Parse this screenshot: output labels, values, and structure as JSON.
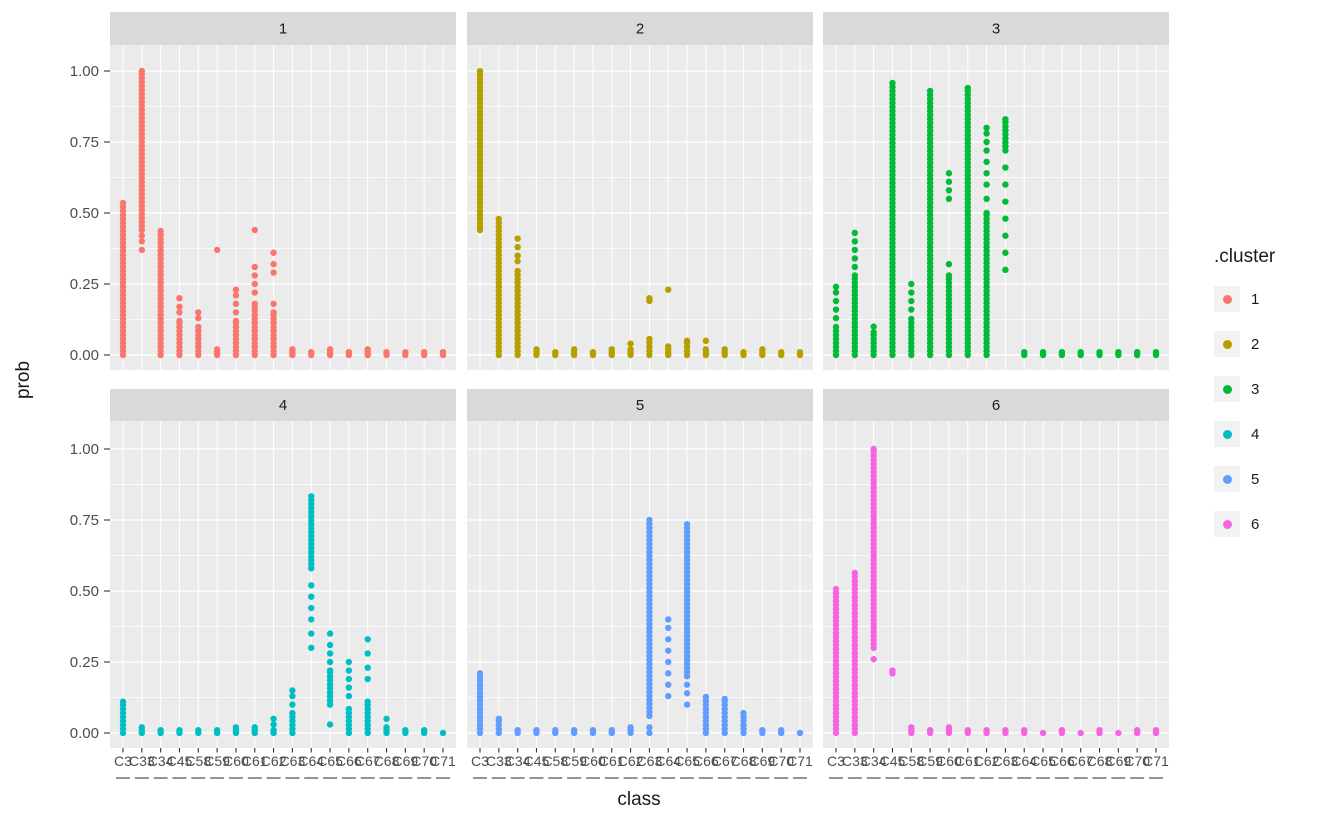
{
  "figure": {
    "xlabel": "class",
    "ylabel": "prob"
  },
  "chart_data": {
    "type": "scatter",
    "subtype": "faceted-strip-plot",
    "title": "",
    "xlabel": "class",
    "ylabel": "prob",
    "ylim": [
      0,
      1
    ],
    "grid": true,
    "y_ticks": [
      0,
      0.25,
      0.5,
      0.75,
      1.0
    ],
    "y_tick_labels": [
      "0.00",
      "0.25",
      "0.50",
      "0.75",
      "1.00"
    ],
    "x_categories": [
      "C3",
      "C33",
      "C34",
      "C45",
      "C58",
      "C59",
      "C60",
      "C61",
      "C62",
      "C63",
      "C64",
      "C65",
      "C66",
      "C67",
      "C68",
      "C69",
      "C70",
      "C71"
    ],
    "legend": {
      "title": ".cluster",
      "position": "right",
      "items": [
        {
          "label": "1",
          "color": "#F8766D"
        },
        {
          "label": "2",
          "color": "#B79F00"
        },
        {
          "label": "3",
          "color": "#00BA38"
        },
        {
          "label": "4",
          "color": "#00BFC4"
        },
        {
          "label": "5",
          "color": "#619CFF"
        },
        {
          "label": "6",
          "color": "#F564E2"
        }
      ]
    },
    "style": {
      "panel_bg": "#EBEBEB",
      "strip_bg": "#D9D9D9",
      "grid_color": "#FFFFFF",
      "tick_text": "#4D4D4D",
      "title_text": "#1A1A1A"
    },
    "facets": [
      {
        "label": "1",
        "color": "#F8766D",
        "columns": [
          {
            "d": [
              [
                0,
                0.54
              ]
            ]
          },
          {
            "d": [
              [
                0.44,
                1.0
              ]
            ],
            "p": [
              0.37,
              0.4,
              0.42
            ]
          },
          {
            "d": [
              [
                0,
                0.44
              ]
            ]
          },
          {
            "d": [
              [
                0,
                0.12
              ]
            ],
            "p": [
              0.15,
              0.17,
              0.2
            ]
          },
          {
            "d": [
              [
                0,
                0.1
              ]
            ],
            "p": [
              0.13,
              0.15
            ]
          },
          {
            "p": [
              0,
              0.01,
              0.02,
              0.37
            ]
          },
          {
            "d": [
              [
                0,
                0.12
              ]
            ],
            "p": [
              0.15,
              0.18,
              0.21,
              0.23
            ]
          },
          {
            "d": [
              [
                0,
                0.18
              ]
            ],
            "p": [
              0.22,
              0.25,
              0.28,
              0.31,
              0.44
            ]
          },
          {
            "d": [
              [
                0,
                0.15
              ]
            ],
            "p": [
              0.18,
              0.29,
              0.32,
              0.36
            ]
          },
          {
            "p": [
              0,
              0.01,
              0.02
            ]
          },
          {
            "p": [
              0,
              0.01
            ]
          },
          {
            "p": [
              0,
              0.01,
              0.02
            ]
          },
          {
            "p": [
              0,
              0.01
            ]
          },
          {
            "p": [
              0,
              0.01,
              0.02
            ]
          },
          {
            "p": [
              0,
              0.01
            ]
          },
          {
            "p": [
              0,
              0.01
            ]
          },
          {
            "p": [
              0,
              0.01
            ]
          },
          {
            "p": [
              0,
              0.01
            ]
          }
        ]
      },
      {
        "label": "2",
        "color": "#B79F00",
        "columns": [
          {
            "d": [
              [
                0.45,
                1.0
              ]
            ],
            "p": [
              0.44
            ]
          },
          {
            "d": [
              [
                0,
                0.48
              ]
            ]
          },
          {
            "d": [
              [
                0,
                0.3
              ]
            ],
            "p": [
              0.33,
              0.35,
              0.38,
              0.41
            ]
          },
          {
            "p": [
              0,
              0.01,
              0.02
            ]
          },
          {
            "p": [
              0,
              0.01
            ]
          },
          {
            "p": [
              0,
              0.01,
              0.02
            ]
          },
          {
            "p": [
              0,
              0.01
            ]
          },
          {
            "p": [
              0,
              0.01,
              0.02
            ]
          },
          {
            "p": [
              0,
              0.01,
              0.02,
              0.04
            ]
          },
          {
            "d": [
              [
                0,
                0.06
              ]
            ],
            "p": [
              0.19,
              0.2
            ]
          },
          {
            "p": [
              0,
              0.01,
              0.02,
              0.03,
              0.23
            ]
          },
          {
            "d": [
              [
                0,
                0.05
              ]
            ]
          },
          {
            "p": [
              0,
              0.01,
              0.02,
              0.05
            ]
          },
          {
            "p": [
              0,
              0.01,
              0.02
            ]
          },
          {
            "p": [
              0,
              0.01
            ]
          },
          {
            "p": [
              0,
              0.01,
              0.02
            ]
          },
          {
            "p": [
              0,
              0.01
            ]
          },
          {
            "p": [
              0,
              0.01
            ]
          }
        ]
      },
      {
        "label": "3",
        "color": "#00BA38",
        "columns": [
          {
            "d": [
              [
                0,
                0.1
              ]
            ],
            "p": [
              0.13,
              0.16,
              0.19,
              0.22,
              0.24
            ]
          },
          {
            "d": [
              [
                0,
                0.28
              ]
            ],
            "p": [
              0.31,
              0.34,
              0.37,
              0.4,
              0.43
            ]
          },
          {
            "d": [
              [
                0,
                0.08
              ]
            ],
            "p": [
              0.1
            ]
          },
          {
            "d": [
              [
                0,
                0.96
              ]
            ]
          },
          {
            "d": [
              [
                0,
                0.13
              ]
            ],
            "p": [
              0.16,
              0.19,
              0.22,
              0.25
            ]
          },
          {
            "d": [
              [
                0,
                0.93
              ]
            ]
          },
          {
            "d": [
              [
                0,
                0.28
              ]
            ],
            "p": [
              0.32,
              0.55,
              0.58,
              0.61,
              0.64
            ]
          },
          {
            "d": [
              [
                0,
                0.94
              ]
            ]
          },
          {
            "d": [
              [
                0,
                0.5
              ]
            ],
            "p": [
              0.55,
              0.6,
              0.64,
              0.68,
              0.72,
              0.75,
              0.78,
              0.8
            ]
          },
          {
            "d": [
              [
                0.72,
                0.83
              ]
            ],
            "p": [
              0.3,
              0.36,
              0.42,
              0.48,
              0.54,
              0.6,
              0.66
            ]
          },
          {
            "p": [
              0,
              0.01
            ]
          },
          {
            "p": [
              0,
              0.01
            ]
          },
          {
            "p": [
              0,
              0.01
            ]
          },
          {
            "p": [
              0,
              0.01
            ]
          },
          {
            "p": [
              0,
              0.01
            ]
          },
          {
            "p": [
              0,
              0.01
            ]
          },
          {
            "p": [
              0,
              0.01
            ]
          },
          {
            "p": [
              0,
              0.01
            ]
          }
        ]
      },
      {
        "label": "4",
        "color": "#00BFC4",
        "columns": [
          {
            "d": [
              [
                0,
                0.11
              ]
            ]
          },
          {
            "p": [
              0,
              0.01,
              0.02
            ]
          },
          {
            "p": [
              0,
              0.01
            ]
          },
          {
            "p": [
              0,
              0.01
            ]
          },
          {
            "p": [
              0,
              0.01
            ]
          },
          {
            "p": [
              0,
              0.01
            ]
          },
          {
            "p": [
              0,
              0.01,
              0.02
            ]
          },
          {
            "p": [
              0,
              0.01,
              0.02
            ]
          },
          {
            "p": [
              0,
              0.01,
              0.03,
              0.05
            ]
          },
          {
            "d": [
              [
                0,
                0.07
              ]
            ],
            "p": [
              0.1,
              0.13,
              0.15
            ]
          },
          {
            "d": [
              [
                0.58,
                0.84
              ]
            ],
            "p": [
              0.3,
              0.35,
              0.4,
              0.44,
              0.48,
              0.52
            ]
          },
          {
            "d": [
              [
                0.1,
                0.22
              ]
            ],
            "p": [
              0.03,
              0.25,
              0.28,
              0.31,
              0.35
            ]
          },
          {
            "d": [
              [
                0,
                0.09
              ]
            ],
            "p": [
              0.13,
              0.16,
              0.19,
              0.22,
              0.25
            ]
          },
          {
            "d": [
              [
                0,
                0.11
              ]
            ],
            "p": [
              0.19,
              0.23,
              0.28,
              0.33
            ]
          },
          {
            "p": [
              0,
              0.01,
              0.02,
              0.05
            ]
          },
          {
            "p": [
              0,
              0.01
            ]
          },
          {
            "p": [
              0,
              0.01
            ]
          },
          {
            "p": [
              0
            ]
          }
        ]
      },
      {
        "label": "5",
        "color": "#619CFF",
        "columns": [
          {
            "d": [
              [
                0,
                0.21
              ]
            ]
          },
          {
            "d": [
              [
                0,
                0.05
              ]
            ]
          },
          {
            "p": [
              0,
              0.01
            ]
          },
          {
            "p": [
              0,
              0.01
            ]
          },
          {
            "p": [
              0,
              0.01
            ]
          },
          {
            "p": [
              0,
              0.01
            ]
          },
          {
            "p": [
              0,
              0.01
            ]
          },
          {
            "p": [
              0,
              0.01
            ]
          },
          {
            "p": [
              0,
              0.01,
              0.02
            ]
          },
          {
            "d": [
              [
                0.06,
                0.75
              ]
            ],
            "p": [
              0,
              0.02
            ]
          },
          {
            "p": [
              0.13,
              0.17,
              0.21,
              0.25,
              0.29,
              0.33,
              0.37,
              0.4
            ]
          },
          {
            "d": [
              [
                0.2,
                0.74
              ]
            ],
            "p": [
              0.1,
              0.14,
              0.17
            ]
          },
          {
            "d": [
              [
                0,
                0.13
              ]
            ]
          },
          {
            "d": [
              [
                0,
                0.12
              ]
            ]
          },
          {
            "d": [
              [
                0,
                0.07
              ]
            ]
          },
          {
            "p": [
              0,
              0.01
            ]
          },
          {
            "p": [
              0,
              0.01
            ]
          },
          {
            "p": [
              0
            ]
          }
        ]
      },
      {
        "label": "6",
        "color": "#F564E2",
        "columns": [
          {
            "d": [
              [
                0,
                0.51
              ]
            ]
          },
          {
            "d": [
              [
                0,
                0.57
              ]
            ]
          },
          {
            "d": [
              [
                0.3,
                1.0
              ]
            ],
            "p": [
              0.26
            ]
          },
          {
            "p": [
              0.21,
              0.22
            ]
          },
          {
            "p": [
              0,
              0.01,
              0.02
            ]
          },
          {
            "p": [
              0,
              0.01
            ]
          },
          {
            "p": [
              0,
              0.01,
              0.02
            ]
          },
          {
            "p": [
              0,
              0.01
            ]
          },
          {
            "p": [
              0,
              0.01
            ]
          },
          {
            "p": [
              0,
              0.01
            ]
          },
          {
            "p": [
              0,
              0.01
            ]
          },
          {
            "p": [
              0
            ]
          },
          {
            "p": [
              0,
              0.01
            ]
          },
          {
            "p": [
              0
            ]
          },
          {
            "p": [
              0,
              0.01
            ]
          },
          {
            "p": [
              0
            ]
          },
          {
            "p": [
              0,
              0.01
            ]
          },
          {
            "p": [
              0,
              0.01
            ]
          }
        ]
      }
    ]
  }
}
